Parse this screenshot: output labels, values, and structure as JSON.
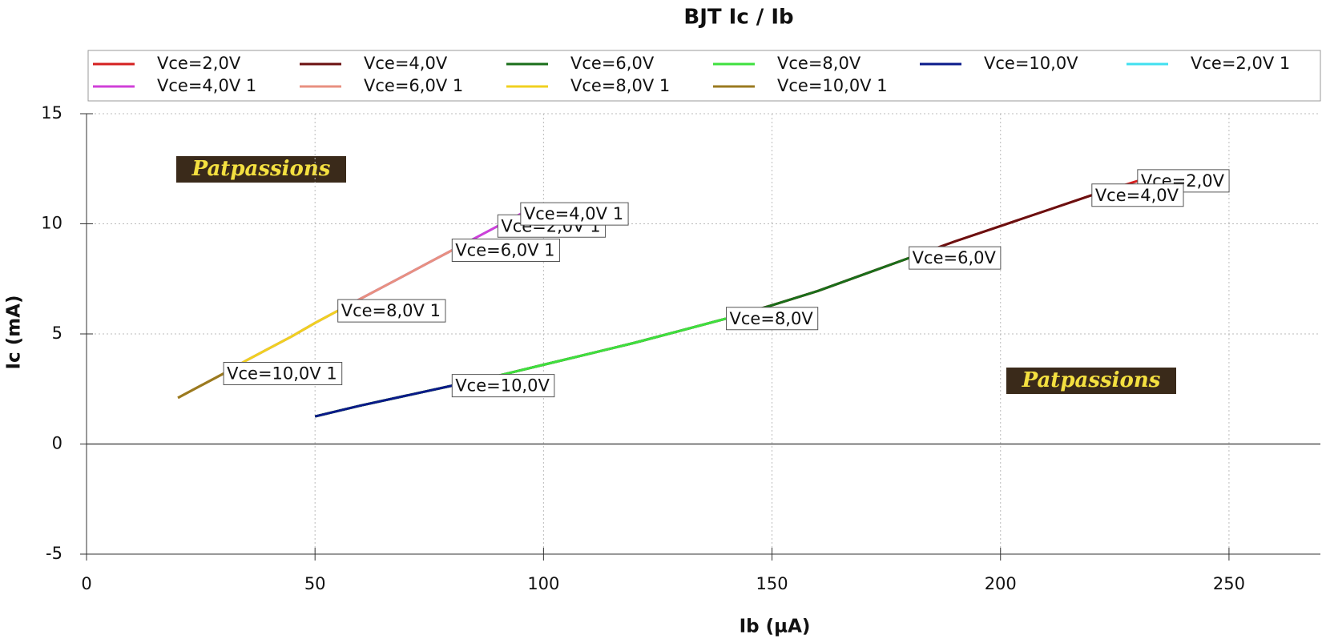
{
  "chart_data": {
    "type": "line",
    "title": "BJT Ic / Ib",
    "x_label": "Ib (µA)",
    "y_label": "Ic (mA)",
    "watermark": "Patpassions",
    "xlim": [
      0,
      270
    ],
    "ylim": [
      -5,
      15
    ],
    "xticks": [
      0,
      50,
      100,
      150,
      200,
      250
    ],
    "yticks": [
      -5,
      0,
      5,
      10,
      15
    ],
    "grid": true,
    "legend": "top",
    "series": [
      {
        "name": "Vce=2,0V",
        "color": "#d42020",
        "x": [
          50,
          60,
          70,
          80,
          90,
          100,
          110,
          120,
          130,
          140,
          150,
          160,
          170,
          180,
          190,
          200,
          210,
          220,
          230
        ],
        "values": [
          1.25,
          1.75,
          2.2,
          2.65,
          3.1,
          3.6,
          4.1,
          4.6,
          5.15,
          5.7,
          6.3,
          6.95,
          7.7,
          8.45,
          9.2,
          9.9,
          10.6,
          11.3,
          11.95
        ]
      },
      {
        "name": "Vce=4,0V",
        "color": "#6b1010",
        "x": [
          50,
          60,
          70,
          80,
          90,
          100,
          110,
          120,
          130,
          140,
          150,
          160,
          170,
          180,
          190,
          200,
          210,
          220
        ],
        "values": [
          1.25,
          1.75,
          2.2,
          2.65,
          3.1,
          3.6,
          4.1,
          4.6,
          5.15,
          5.7,
          6.3,
          6.95,
          7.7,
          8.45,
          9.2,
          9.9,
          10.6,
          11.3
        ]
      },
      {
        "name": "Vce=6,0V",
        "color": "#1a6e1a",
        "x": [
          50,
          60,
          70,
          80,
          90,
          100,
          110,
          120,
          130,
          140,
          150,
          160,
          170,
          180
        ],
        "values": [
          1.25,
          1.75,
          2.2,
          2.65,
          3.1,
          3.6,
          4.1,
          4.6,
          5.15,
          5.7,
          6.3,
          6.95,
          7.7,
          8.45
        ]
      },
      {
        "name": "Vce=8,0V",
        "color": "#3ee03e",
        "x": [
          50,
          60,
          70,
          80,
          90,
          100,
          110,
          120,
          130,
          140
        ],
        "values": [
          1.25,
          1.75,
          2.2,
          2.65,
          3.1,
          3.6,
          4.1,
          4.6,
          5.15,
          5.7
        ]
      },
      {
        "name": "Vce=10,0V",
        "color": "#0a1a8a",
        "x": [
          50,
          60,
          70,
          80
        ],
        "values": [
          1.25,
          1.75,
          2.2,
          2.65
        ]
      },
      {
        "name": "Vce=2,0V 1",
        "color": "#40e0f0",
        "x": [
          20,
          25,
          30,
          35,
          40,
          45,
          50,
          55,
          60,
          65,
          70,
          75,
          80,
          85,
          90
        ],
        "values": [
          2.1,
          2.65,
          3.2,
          3.8,
          4.35,
          4.9,
          5.5,
          6.05,
          6.6,
          7.15,
          7.7,
          8.25,
          8.8,
          9.35,
          9.9
        ]
      },
      {
        "name": "Vce=4,0V 1",
        "color": "#d040d8",
        "x": [
          20,
          25,
          30,
          35,
          40,
          45,
          50,
          55,
          60,
          65,
          70,
          75,
          80,
          85,
          90,
          95
        ],
        "values": [
          2.1,
          2.65,
          3.2,
          3.8,
          4.35,
          4.9,
          5.5,
          6.05,
          6.6,
          7.15,
          7.7,
          8.25,
          8.8,
          9.35,
          9.9,
          10.45
        ]
      },
      {
        "name": "Vce=6,0V 1",
        "color": "#e89080",
        "x": [
          20,
          25,
          30,
          35,
          40,
          45,
          50,
          55,
          60,
          65,
          70,
          75,
          80
        ],
        "values": [
          2.1,
          2.65,
          3.2,
          3.8,
          4.35,
          4.9,
          5.5,
          6.05,
          6.6,
          7.15,
          7.7,
          8.25,
          8.8
        ]
      },
      {
        "name": "Vce=8,0V 1",
        "color": "#f0d020",
        "x": [
          20,
          25,
          30,
          35,
          40,
          45,
          50,
          55
        ],
        "values": [
          2.1,
          2.65,
          3.2,
          3.8,
          4.35,
          4.9,
          5.5,
          6.05
        ]
      },
      {
        "name": "Vce=10,0V 1",
        "color": "#9a7a20",
        "x": [
          20,
          25,
          30
        ],
        "values": [
          2.1,
          2.65,
          3.2
        ]
      }
    ]
  }
}
